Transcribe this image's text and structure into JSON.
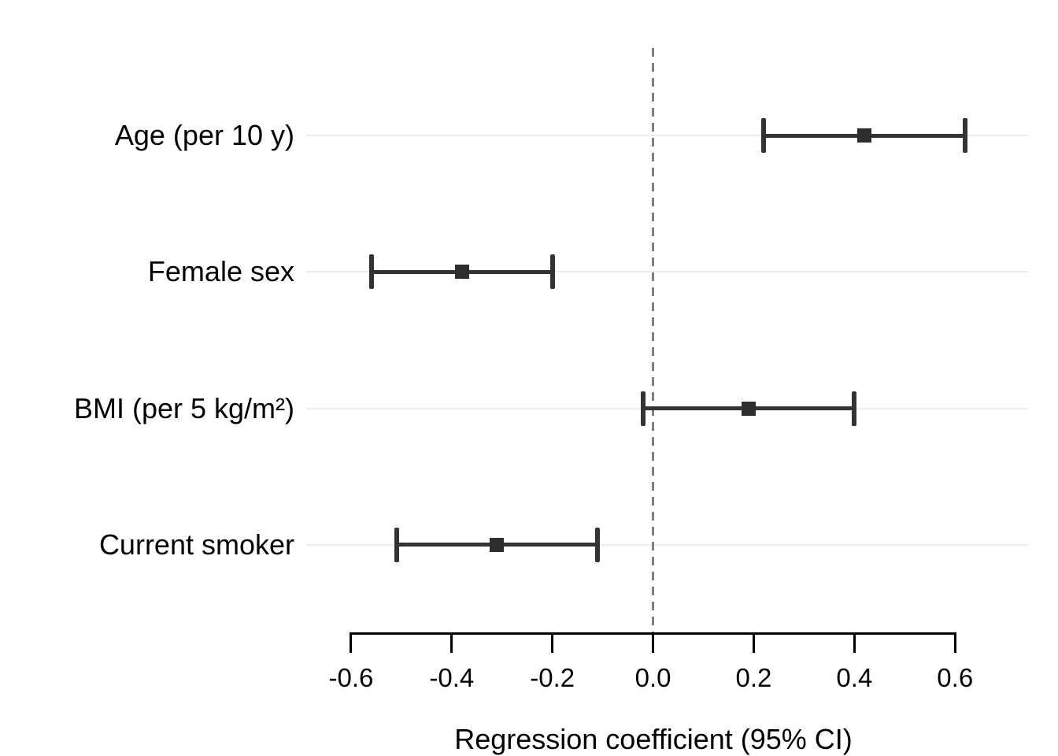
{
  "chart_data": {
    "type": "forest",
    "title": "",
    "xlabel": "Regression coefficient (95% CI)",
    "x_ticks": [
      -0.6,
      -0.4,
      -0.2,
      0.0,
      0.2,
      0.4,
      0.6
    ],
    "x_tick_labels": [
      "-0.6",
      "-0.4",
      "-0.2",
      "0.0",
      "0.2",
      "0.4",
      "0.6"
    ],
    "xlim": [
      -0.69,
      0.75
    ],
    "zero_reference": 0.0,
    "grid": "horizontal-per-row",
    "legend": "none",
    "rows": [
      {
        "label": "Age (per 10 y)",
        "estimate": 0.42,
        "ci_low": 0.22,
        "ci_high": 0.62
      },
      {
        "label": "Female sex",
        "estimate": -0.38,
        "ci_low": -0.56,
        "ci_high": -0.2
      },
      {
        "label": "BMI (per 5 kg/m²)",
        "estimate": 0.19,
        "ci_low": -0.02,
        "ci_high": 0.4
      },
      {
        "label": "Current smoker",
        "estimate": -0.31,
        "ci_low": -0.51,
        "ci_high": -0.11
      }
    ],
    "colors": {
      "background": "#ffffff",
      "ci": "#333333",
      "marker": "#2e2e2e",
      "grid": "#ededed",
      "zero_line": "#7f7f7f",
      "axis": "#000000",
      "text": "#000000"
    }
  }
}
